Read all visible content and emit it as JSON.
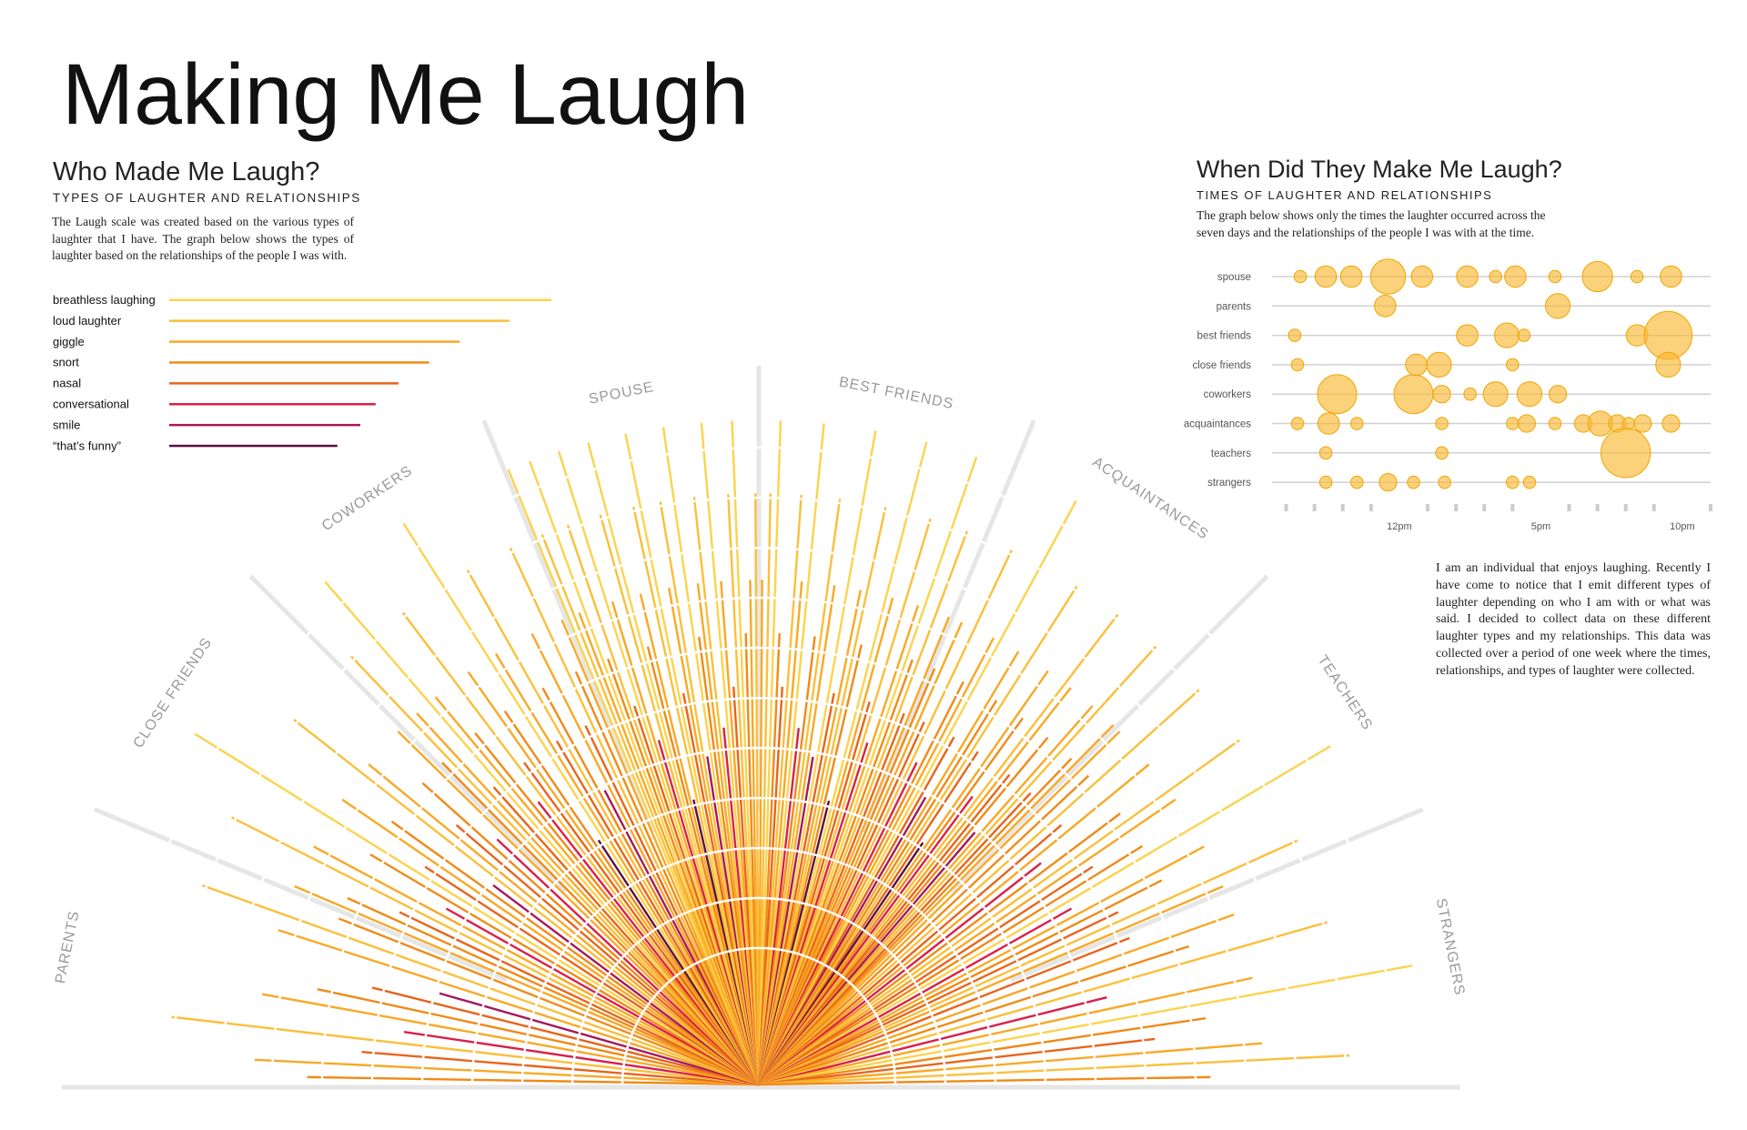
{
  "title": "Making Me Laugh",
  "about": "I am an individual that enjoys laughing. Recently I have come to notice that I emit different types of laughter depending on who I am with or what was said. I decided to collect data on these different laughter types and my relationships. This data was collected over a period of one week where the times, relationships, and types of laughter were collected.",
  "chart_data": [
    {
      "type": "bar",
      "orientation": "horizontal",
      "title": "Who Made Me Laugh?",
      "subtitle": "TYPES OF LAUGHTER AND RELATIONSHIPS",
      "description": "The Laugh scale was created based on the various types of laughter that I have. The graph below shows the types of laughter based on the relationships of the people I was with.",
      "categories": [
        "breathless laughing",
        "loud laughter",
        "giggle",
        "snort",
        "nasal",
        "conversational",
        "smile",
        "“that’s funny”"
      ],
      "values": [
        100,
        89,
        76,
        68,
        60,
        54,
        50,
        44
      ],
      "colors": [
        "#fcd34d",
        "#fbbf3a",
        "#f9a825",
        "#f08a18",
        "#e8641c",
        "#d8204a",
        "#a3195b",
        "#5a1040"
      ]
    },
    {
      "type": "fan",
      "series": [
        {
          "name": "PARENTS",
          "values": [
            68,
            76,
            60,
            89,
            54,
            76,
            68,
            60,
            50,
            76,
            89,
            68
          ]
        },
        {
          "name": "CLOSE FRIENDS",
          "values": [
            76,
            68,
            60,
            89,
            76,
            54,
            68,
            100,
            60,
            76,
            68,
            50,
            89,
            76,
            60,
            68,
            54,
            76
          ]
        },
        {
          "name": "COWORKERS",
          "values": [
            68,
            89,
            76,
            60,
            100,
            76,
            68,
            54,
            89,
            60,
            76,
            68,
            44,
            100,
            76,
            60,
            89,
            68,
            50,
            76,
            60,
            89,
            68,
            76
          ]
        },
        {
          "name": "SPOUSE",
          "values": [
            100,
            89,
            76,
            100,
            68,
            89,
            60,
            100,
            76,
            54,
            89,
            100,
            68,
            76,
            44,
            89,
            100,
            60,
            76,
            89,
            50,
            100,
            68,
            76,
            89,
            54,
            100,
            76,
            60,
            89,
            100,
            68,
            76,
            89
          ]
        },
        {
          "name": "BEST FRIENDS",
          "values": [
            76,
            89,
            100,
            68,
            60,
            89,
            76,
            100,
            54,
            68,
            89,
            76,
            50,
            100,
            60,
            76,
            89,
            68,
            44,
            100,
            76,
            60,
            89,
            54,
            76,
            100,
            68,
            89,
            60,
            76
          ]
        },
        {
          "name": "ACQUAINTANCES",
          "values": [
            68,
            76,
            60,
            89,
            54,
            68,
            76,
            100,
            60,
            50,
            76,
            68,
            89,
            60,
            44,
            76,
            68,
            54,
            89,
            76,
            60,
            68,
            50,
            76,
            89,
            60,
            68,
            76
          ]
        },
        {
          "name": "TEACHERS",
          "values": [
            76,
            68,
            89,
            60,
            76,
            54,
            68,
            89,
            76,
            60,
            68,
            100,
            54,
            76,
            68,
            60,
            89,
            76
          ]
        },
        {
          "name": "STRANGERS",
          "values": [
            60,
            76,
            68,
            89,
            54,
            76,
            100,
            68,
            60,
            76,
            89,
            68
          ]
        }
      ]
    },
    {
      "type": "bubble",
      "title": "When Did They Make Me Laugh?",
      "subtitle": "TIMES OF LAUGHTER AND RELATIONSHIPS",
      "description": "The graph below shows only the times the laughter occurred across the seven days and the relationships of the people I was with at the time.",
      "color": "#f9b934",
      "xlim": [
        7.5,
        23
      ],
      "xticks": [
        {
          "value": 12,
          "label": "12pm"
        },
        {
          "value": 17,
          "label": "5pm"
        },
        {
          "value": 22,
          "label": "10pm"
        }
      ],
      "xticks_minor": [
        8,
        9,
        10,
        11,
        13,
        14,
        15,
        16,
        18,
        19,
        20,
        21,
        23
      ],
      "series": [
        {
          "name": "spouse",
          "x": [
            8.5,
            9.4,
            10.3,
            11.6,
            12.8,
            14.4,
            15.4,
            16.1,
            17.5,
            19,
            20.4,
            21.6
          ],
          "sizes": [
            1,
            3,
            3,
            8,
            3,
            3,
            1,
            3,
            1,
            6,
            1,
            3
          ]
        },
        {
          "name": "parents",
          "x": [
            11.5,
            17.6
          ],
          "sizes": [
            3,
            4
          ]
        },
        {
          "name": "best friends",
          "x": [
            8.3,
            14.4,
            15.8,
            16.4,
            20.4,
            21.5
          ],
          "sizes": [
            1,
            3,
            4,
            1,
            3,
            15
          ]
        },
        {
          "name": "close friends",
          "x": [
            8.4,
            12.6,
            13.4,
            16,
            21.5
          ],
          "sizes": [
            1,
            3,
            4,
            1,
            4
          ]
        },
        {
          "name": "coworkers",
          "x": [
            9.8,
            12.5,
            13.5,
            14.5,
            15.4,
            16.6,
            17.6
          ],
          "sizes": [
            10,
            10,
            2,
            1,
            4,
            4,
            2
          ]
        },
        {
          "name": "acquaintances",
          "x": [
            8.4,
            9.5,
            10.5,
            13.5,
            16,
            16.5,
            17.5,
            18.5,
            19.1,
            19.7,
            20.1,
            20.6,
            21.6
          ],
          "sizes": [
            1,
            3,
            1,
            1,
            1,
            2,
            1,
            2,
            4,
            2,
            1,
            2,
            2
          ]
        },
        {
          "name": "teachers",
          "x": [
            9.4,
            13.5,
            20
          ],
          "sizes": [
            1,
            1,
            16
          ]
        },
        {
          "name": "strangers",
          "x": [
            9.4,
            10.5,
            11.6,
            12.5,
            13.6,
            16,
            16.6
          ],
          "sizes": [
            1,
            1,
            2,
            1,
            1,
            1,
            1
          ]
        }
      ]
    }
  ]
}
